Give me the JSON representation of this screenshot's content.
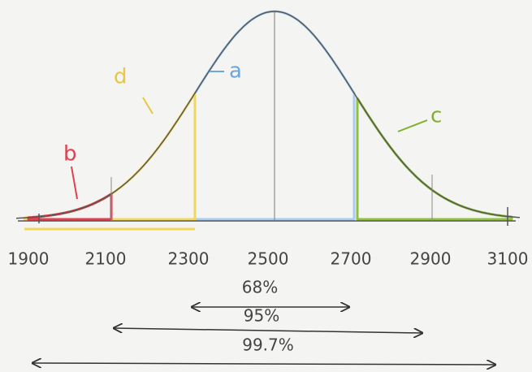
{
  "axis_labels": [
    "1900",
    "2100",
    "2300",
    "2500",
    "2700",
    "2900",
    "3100"
  ],
  "regions": {
    "a": "a",
    "b": "b",
    "c": "c",
    "d": "d"
  },
  "ranges": [
    "68%",
    "95%",
    "99.7%"
  ]
}
